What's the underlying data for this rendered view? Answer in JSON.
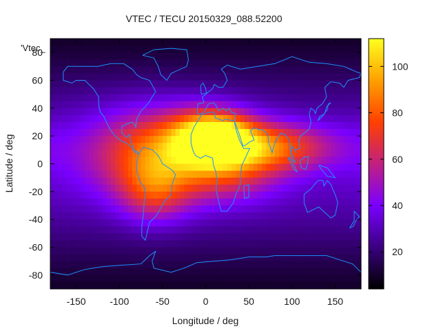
{
  "chart_data": {
    "type": "heatmap",
    "title": "VTEC / TECU 20150329_088.52200",
    "series_key": "'Vtec_",
    "xlabel": "Longitude / deg",
    "ylabel": "Latitude / deg",
    "xlim": [
      -180,
      180
    ],
    "ylim": [
      -90,
      90
    ],
    "xticks": [
      -150,
      -100,
      -50,
      0,
      50,
      100,
      150
    ],
    "yticks": [
      -80,
      -60,
      -40,
      -20,
      0,
      20,
      40,
      60,
      80
    ],
    "colorbar": {
      "range": [
        4,
        112
      ],
      "ticks": [
        20,
        40,
        60,
        80,
        100
      ],
      "palette": [
        "#000000",
        "#3b0080",
        "#7a00ff",
        "#c22080",
        "#ff4000",
        "#ffa000",
        "#ffff20"
      ]
    },
    "grid": false,
    "coastline_color": "#1e90ff",
    "heat_sources": [
      {
        "lon": 10,
        "lat": 20,
        "amp": 72,
        "slon": 30,
        "slat": 12
      },
      {
        "lon": -45,
        "lat": 8,
        "amp": 55,
        "slon": 60,
        "slat": 22
      },
      {
        "lon": 70,
        "lat": 12,
        "amp": 48,
        "slon": 55,
        "slat": 12
      },
      {
        "lon": -60,
        "lat": -20,
        "amp": 30,
        "slon": 28,
        "slat": 16
      },
      {
        "lon": 30,
        "lat": -5,
        "amp": 22,
        "slon": 40,
        "slat": 15
      }
    ],
    "coastlines": [
      {
        "name": "north-america",
        "points": [
          [
            -165,
            66
          ],
          [
            -160,
            70
          ],
          [
            -140,
            70
          ],
          [
            -125,
            70
          ],
          [
            -110,
            72
          ],
          [
            -95,
            72
          ],
          [
            -85,
            68
          ],
          [
            -80,
            64
          ],
          [
            -75,
            62
          ],
          [
            -65,
            60
          ],
          [
            -58,
            52
          ],
          [
            -66,
            44
          ],
          [
            -70,
            41
          ],
          [
            -75,
            38
          ],
          [
            -80,
            32
          ],
          [
            -81,
            26
          ],
          [
            -82,
            28
          ],
          [
            -85,
            30
          ],
          [
            -90,
            29
          ],
          [
            -97,
            27
          ],
          [
            -97,
            22
          ],
          [
            -92,
            19
          ],
          [
            -88,
            21
          ],
          [
            -87,
            16
          ],
          [
            -84,
            12
          ],
          [
            -82,
            9
          ],
          [
            -79,
            9
          ],
          [
            -78,
            7
          ],
          [
            -82,
            8
          ],
          [
            -86,
            12
          ],
          [
            -92,
            15
          ],
          [
            -97,
            16
          ],
          [
            -105,
            20
          ],
          [
            -110,
            24
          ],
          [
            -115,
            30
          ],
          [
            -118,
            34
          ],
          [
            -122,
            37
          ],
          [
            -124,
            42
          ],
          [
            -124,
            48
          ],
          [
            -130,
            54
          ],
          [
            -140,
            60
          ],
          [
            -150,
            60
          ],
          [
            -155,
            58
          ],
          [
            -165,
            60
          ],
          [
            -165,
            66
          ]
        ]
      },
      {
        "name": "greenland",
        "points": [
          [
            -73,
            78
          ],
          [
            -60,
            82
          ],
          [
            -40,
            83
          ],
          [
            -22,
            82
          ],
          [
            -20,
            75
          ],
          [
            -22,
            70
          ],
          [
            -40,
            65
          ],
          [
            -45,
            60
          ],
          [
            -52,
            64
          ],
          [
            -55,
            70
          ],
          [
            -60,
            76
          ],
          [
            -73,
            78
          ]
        ]
      },
      {
        "name": "south-america",
        "points": [
          [
            -78,
            7
          ],
          [
            -72,
            12
          ],
          [
            -62,
            10
          ],
          [
            -55,
            6
          ],
          [
            -50,
            0
          ],
          [
            -38,
            -5
          ],
          [
            -35,
            -8
          ],
          [
            -39,
            -15
          ],
          [
            -40,
            -22
          ],
          [
            -48,
            -27
          ],
          [
            -55,
            -35
          ],
          [
            -58,
            -38
          ],
          [
            -65,
            -42
          ],
          [
            -68,
            -50
          ],
          [
            -70,
            -55
          ],
          [
            -74,
            -52
          ],
          [
            -74,
            -45
          ],
          [
            -72,
            -35
          ],
          [
            -71,
            -25
          ],
          [
            -70,
            -18
          ],
          [
            -76,
            -13
          ],
          [
            -80,
            -5
          ],
          [
            -80,
            0
          ],
          [
            -78,
            7
          ]
        ]
      },
      {
        "name": "eurasia",
        "points": [
          [
            -10,
            36
          ],
          [
            -9,
            43
          ],
          [
            -2,
            44
          ],
          [
            -4,
            48
          ],
          [
            2,
            51
          ],
          [
            8,
            54
          ],
          [
            10,
            57
          ],
          [
            15,
            55
          ],
          [
            20,
            55
          ],
          [
            25,
            60
          ],
          [
            22,
            65
          ],
          [
            18,
            68
          ],
          [
            25,
            71
          ],
          [
            40,
            68
          ],
          [
            60,
            70
          ],
          [
            80,
            72
          ],
          [
            100,
            77
          ],
          [
            120,
            73
          ],
          [
            140,
            72
          ],
          [
            160,
            70
          ],
          [
            175,
            66
          ],
          [
            180,
            65
          ],
          [
            178,
            62
          ],
          [
            165,
            60
          ],
          [
            160,
            55
          ],
          [
            155,
            58
          ],
          [
            145,
            59
          ],
          [
            138,
            55
          ],
          [
            140,
            48
          ],
          [
            135,
            43
          ],
          [
            129,
            40
          ],
          [
            127,
            36
          ],
          [
            126,
            38
          ],
          [
            122,
            40
          ],
          [
            120,
            36
          ],
          [
            122,
            30
          ],
          [
            120,
            25
          ],
          [
            110,
            20
          ],
          [
            108,
            16
          ],
          [
            109,
            11
          ],
          [
            103,
            10
          ],
          [
            105,
            8
          ],
          [
            100,
            13
          ],
          [
            99,
            8
          ],
          [
            100,
            3
          ],
          [
            104,
            1
          ],
          [
            103,
            2
          ],
          [
            98,
            10
          ],
          [
            97,
            17
          ],
          [
            92,
            21
          ],
          [
            87,
            22
          ],
          [
            80,
            15
          ],
          [
            77,
            8
          ],
          [
            73,
            15
          ],
          [
            72,
            21
          ],
          [
            67,
            24
          ],
          [
            60,
            25
          ],
          [
            57,
            26
          ],
          [
            52,
            24
          ],
          [
            56,
            17
          ],
          [
            52,
            16
          ],
          [
            45,
            13
          ],
          [
            43,
            13
          ],
          [
            39,
            21
          ],
          [
            35,
            28
          ],
          [
            33,
            31
          ],
          [
            35,
            36
          ],
          [
            30,
            37
          ],
          [
            27,
            40
          ],
          [
            24,
            38
          ],
          [
            20,
            40
          ],
          [
            15,
            38
          ],
          [
            12,
            42
          ],
          [
            9,
            44
          ],
          [
            3,
            43
          ],
          [
            -1,
            38
          ],
          [
            -5,
            36
          ],
          [
            -10,
            36
          ]
        ]
      },
      {
        "name": "africa",
        "points": [
          [
            -17,
            21
          ],
          [
            -17,
            15
          ],
          [
            -15,
            10
          ],
          [
            -12,
            6
          ],
          [
            -6,
            4
          ],
          [
            0,
            6
          ],
          [
            8,
            4
          ],
          [
            9,
            -1
          ],
          [
            12,
            -6
          ],
          [
            13,
            -12
          ],
          [
            12,
            -18
          ],
          [
            15,
            -27
          ],
          [
            18,
            -34
          ],
          [
            25,
            -34
          ],
          [
            32,
            -28
          ],
          [
            35,
            -22
          ],
          [
            40,
            -15
          ],
          [
            40,
            -8
          ],
          [
            42,
            -1
          ],
          [
            51,
            11
          ],
          [
            44,
            11
          ],
          [
            39,
            17
          ],
          [
            35,
            25
          ],
          [
            33,
            31
          ],
          [
            22,
            32
          ],
          [
            20,
            31
          ],
          [
            11,
            33
          ],
          [
            10,
            37
          ],
          [
            3,
            37
          ],
          [
            -5,
            35
          ],
          [
            -10,
            30
          ],
          [
            -13,
            27
          ],
          [
            -17,
            21
          ]
        ]
      },
      {
        "name": "madagascar",
        "points": [
          [
            44,
            -16
          ],
          [
            50,
            -15
          ],
          [
            50,
            -24
          ],
          [
            45,
            -25
          ],
          [
            44,
            -16
          ]
        ]
      },
      {
        "name": "australia",
        "points": [
          [
            114,
            -22
          ],
          [
            122,
            -18
          ],
          [
            130,
            -12
          ],
          [
            136,
            -12
          ],
          [
            137,
            -16
          ],
          [
            141,
            -12
          ],
          [
            145,
            -15
          ],
          [
            150,
            -22
          ],
          [
            153,
            -28
          ],
          [
            150,
            -37
          ],
          [
            145,
            -39
          ],
          [
            138,
            -35
          ],
          [
            131,
            -31
          ],
          [
            118,
            -35
          ],
          [
            114,
            -28
          ],
          [
            114,
            -22
          ]
        ]
      },
      {
        "name": "borneo",
        "points": [
          [
            109,
            2
          ],
          [
            115,
            5
          ],
          [
            119,
            5
          ],
          [
            118,
            0
          ],
          [
            116,
            -4
          ],
          [
            111,
            -3
          ],
          [
            109,
            2
          ]
        ]
      },
      {
        "name": "sumatra",
        "points": [
          [
            95,
            5
          ],
          [
            100,
            2
          ],
          [
            106,
            -6
          ],
          [
            102,
            -4
          ],
          [
            95,
            5
          ]
        ]
      },
      {
        "name": "new-guinea",
        "points": [
          [
            131,
            -1
          ],
          [
            141,
            -3
          ],
          [
            150,
            -10
          ],
          [
            141,
            -9
          ],
          [
            134,
            -4
          ],
          [
            131,
            -1
          ]
        ]
      },
      {
        "name": "japan",
        "points": [
          [
            130,
            31
          ],
          [
            135,
            34
          ],
          [
            141,
            39
          ],
          [
            142,
            43
          ],
          [
            145,
            44
          ],
          [
            140,
            41
          ],
          [
            138,
            36
          ],
          [
            132,
            34
          ],
          [
            130,
            31
          ]
        ]
      },
      {
        "name": "britain",
        "points": [
          [
            -5,
            50
          ],
          [
            1,
            51
          ],
          [
            0,
            54
          ],
          [
            -3,
            58
          ],
          [
            -6,
            56
          ],
          [
            -5,
            50
          ]
        ]
      },
      {
        "name": "new-zealand",
        "points": [
          [
            172,
            -34
          ],
          [
            178,
            -38
          ],
          [
            174,
            -41
          ],
          [
            171,
            -45
          ],
          [
            167,
            -46
          ],
          [
            172,
            -41
          ],
          [
            172,
            -34
          ]
        ]
      },
      {
        "name": "antarctica",
        "points": [
          [
            -180,
            -78
          ],
          [
            -160,
            -80
          ],
          [
            -140,
            -76
          ],
          [
            -120,
            -74
          ],
          [
            -100,
            -73
          ],
          [
            -75,
            -72
          ],
          [
            -65,
            -66
          ],
          [
            -58,
            -63
          ],
          [
            -62,
            -70
          ],
          [
            -60,
            -75
          ],
          [
            -40,
            -78
          ],
          [
            -25,
            -75
          ],
          [
            -10,
            -71
          ],
          [
            10,
            -70
          ],
          [
            30,
            -69
          ],
          [
            50,
            -67
          ],
          [
            70,
            -67
          ],
          [
            80,
            -66
          ],
          [
            100,
            -66
          ],
          [
            120,
            -66
          ],
          [
            140,
            -66
          ],
          [
            160,
            -70
          ],
          [
            170,
            -72
          ],
          [
            180,
            -78
          ]
        ]
      }
    ]
  }
}
